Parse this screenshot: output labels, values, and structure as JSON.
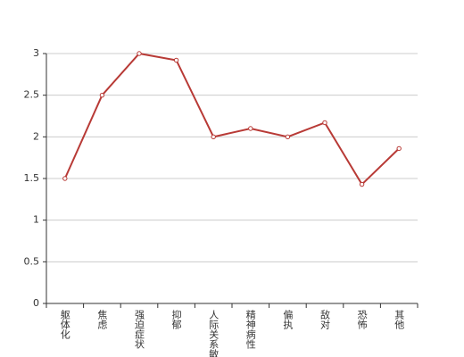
{
  "chart_data": {
    "type": "line",
    "categories": [
      "躯体化",
      "焦虑",
      "强迫症状",
      "抑郁",
      "人际关系敏感",
      "精神病性",
      "偏执",
      "敌对",
      "恐怖",
      "其他"
    ],
    "values": [
      1.5,
      2.5,
      3,
      2.92,
      2,
      2.1,
      2,
      2.17,
      1.43,
      1.86
    ],
    "color": "#b83a36",
    "ylim": [
      0,
      3
    ],
    "yticks": [
      0,
      0.5,
      1,
      1.5,
      2,
      2.5,
      3
    ],
    "grid": true
  }
}
